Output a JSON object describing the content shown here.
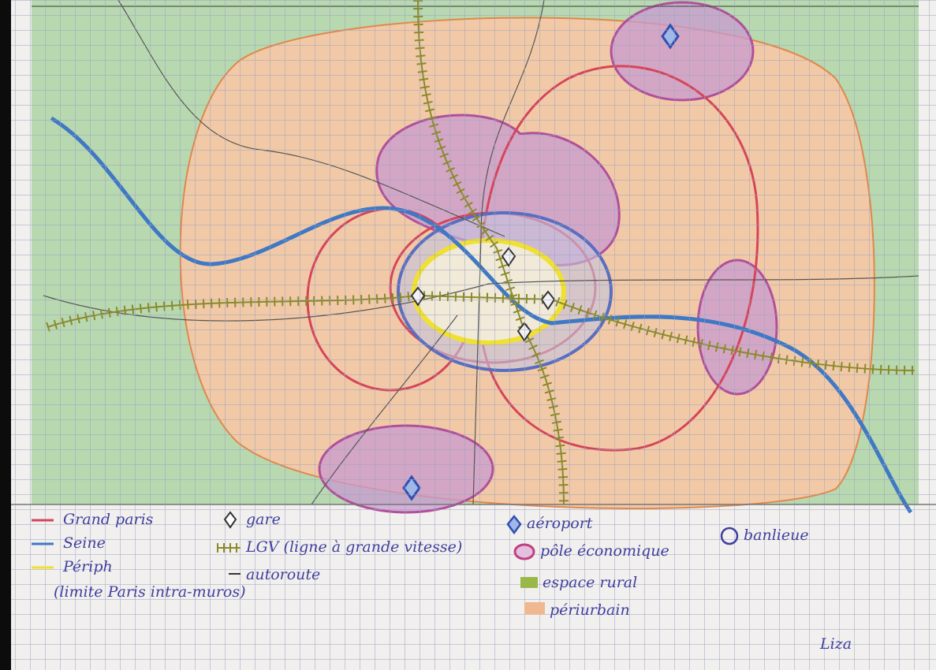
{
  "legend": {
    "items": [
      {
        "label": "Grand paris"
      },
      {
        "label": "Seine"
      },
      {
        "label": "Périph"
      },
      {
        "label": "(limite Paris intra-muros)"
      },
      {
        "label": "gare"
      },
      {
        "label": "LGV (ligne à grande vitesse)"
      },
      {
        "label": "autoroute"
      },
      {
        "label": "aéroport"
      },
      {
        "label": "pôle économique"
      },
      {
        "label": "espace rural"
      },
      {
        "label": "périurbain"
      },
      {
        "label": "banlieue"
      }
    ]
  },
  "signature": "Liza"
}
